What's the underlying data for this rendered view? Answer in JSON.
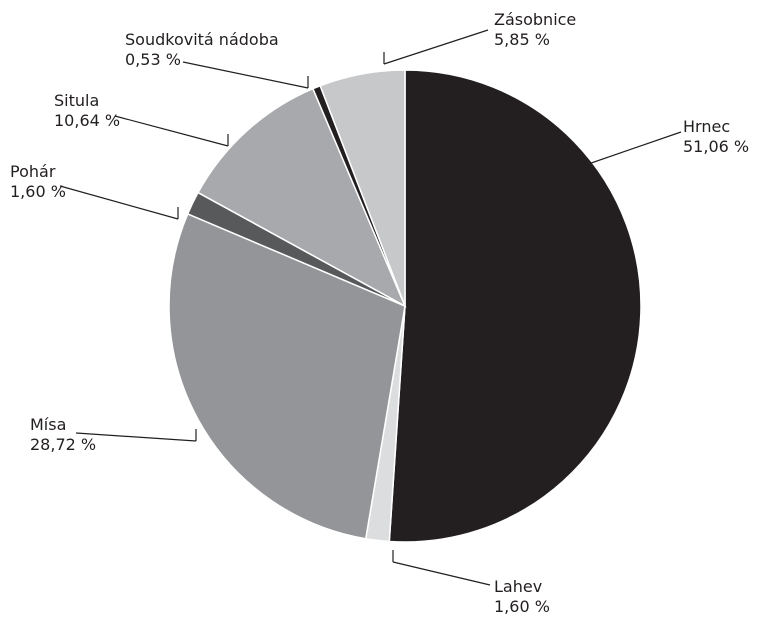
{
  "chart_data": {
    "type": "pie",
    "title": "",
    "start": "12 o'clock",
    "direction": "clockwise",
    "slices": [
      {
        "label": "Hrnec",
        "value": 51.06,
        "value_label": "51,06 %",
        "color": "#231f20"
      },
      {
        "label": "Lahev",
        "value": 1.6,
        "value_label": "1,60 %",
        "color": "#dcddde"
      },
      {
        "label": "Mísa",
        "value": 28.72,
        "value_label": "28,72 %",
        "color": "#939598"
      },
      {
        "label": "Pohár",
        "value": 1.6,
        "value_label": "1,60 %",
        "color": "#58595b"
      },
      {
        "label": "Situla",
        "value": 10.64,
        "value_label": "10,64 %",
        "color": "#a7a9ac"
      },
      {
        "label": "Soudkovitá nádoba",
        "value": 0.53,
        "value_label": "0,53 %",
        "color": "#231f20"
      },
      {
        "label": "Zásobnice",
        "value": 5.85,
        "value_label": "5,85 %",
        "color": "#c7c8ca"
      }
    ]
  }
}
